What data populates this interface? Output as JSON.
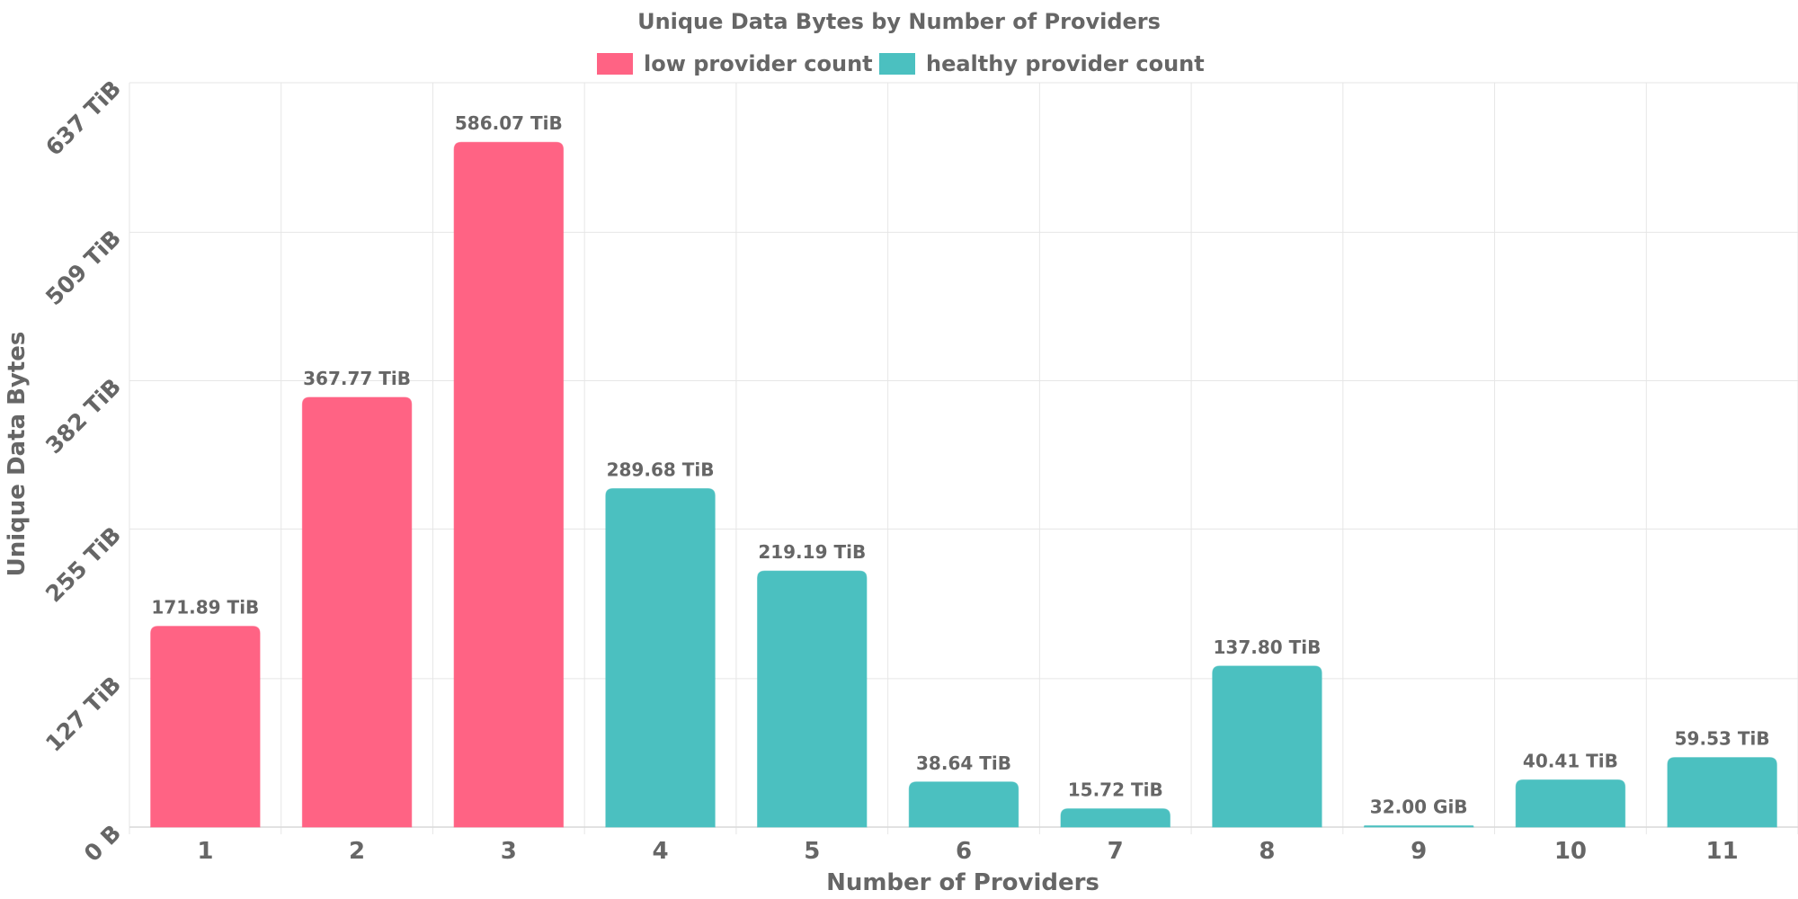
{
  "chart_data": {
    "type": "bar",
    "title": "Unique Data Bytes by Number of Providers",
    "xlabel": "Number of Providers",
    "ylabel": "Unique Data Bytes",
    "categories": [
      "1",
      "2",
      "3",
      "4",
      "5",
      "6",
      "7",
      "8",
      "9",
      "10",
      "11"
    ],
    "values_tib": [
      171.89,
      367.77,
      586.07,
      289.68,
      219.19,
      38.64,
      15.72,
      137.8,
      0.03125,
      40.41,
      59.53
    ],
    "value_labels": [
      "171.89 TiB",
      "367.77 TiB",
      "586.07 TiB",
      "289.68 TiB",
      "219.19 TiB",
      "38.64 TiB",
      "15.72 TiB",
      "137.80 TiB",
      "32.00 GiB",
      "40.41 TiB",
      "59.53 TiB"
    ],
    "series_group": [
      "low",
      "low",
      "low",
      "healthy",
      "healthy",
      "healthy",
      "healthy",
      "healthy",
      "healthy",
      "healthy",
      "healthy"
    ],
    "legend": [
      {
        "key": "low",
        "label": "low provider count",
        "color": "#ff6384"
      },
      {
        "key": "healthy",
        "label": "healthy provider count",
        "color": "#4bc0c0"
      }
    ],
    "legend_position": "top",
    "ylim": [
      0,
      637
    ],
    "y_ticks": [
      0,
      127,
      255,
      382,
      509,
      637
    ],
    "y_tick_labels": [
      "0 B",
      "127 TiB",
      "255 TiB",
      "382 TiB",
      "509 TiB",
      "637 TiB"
    ],
    "grid": true
  }
}
